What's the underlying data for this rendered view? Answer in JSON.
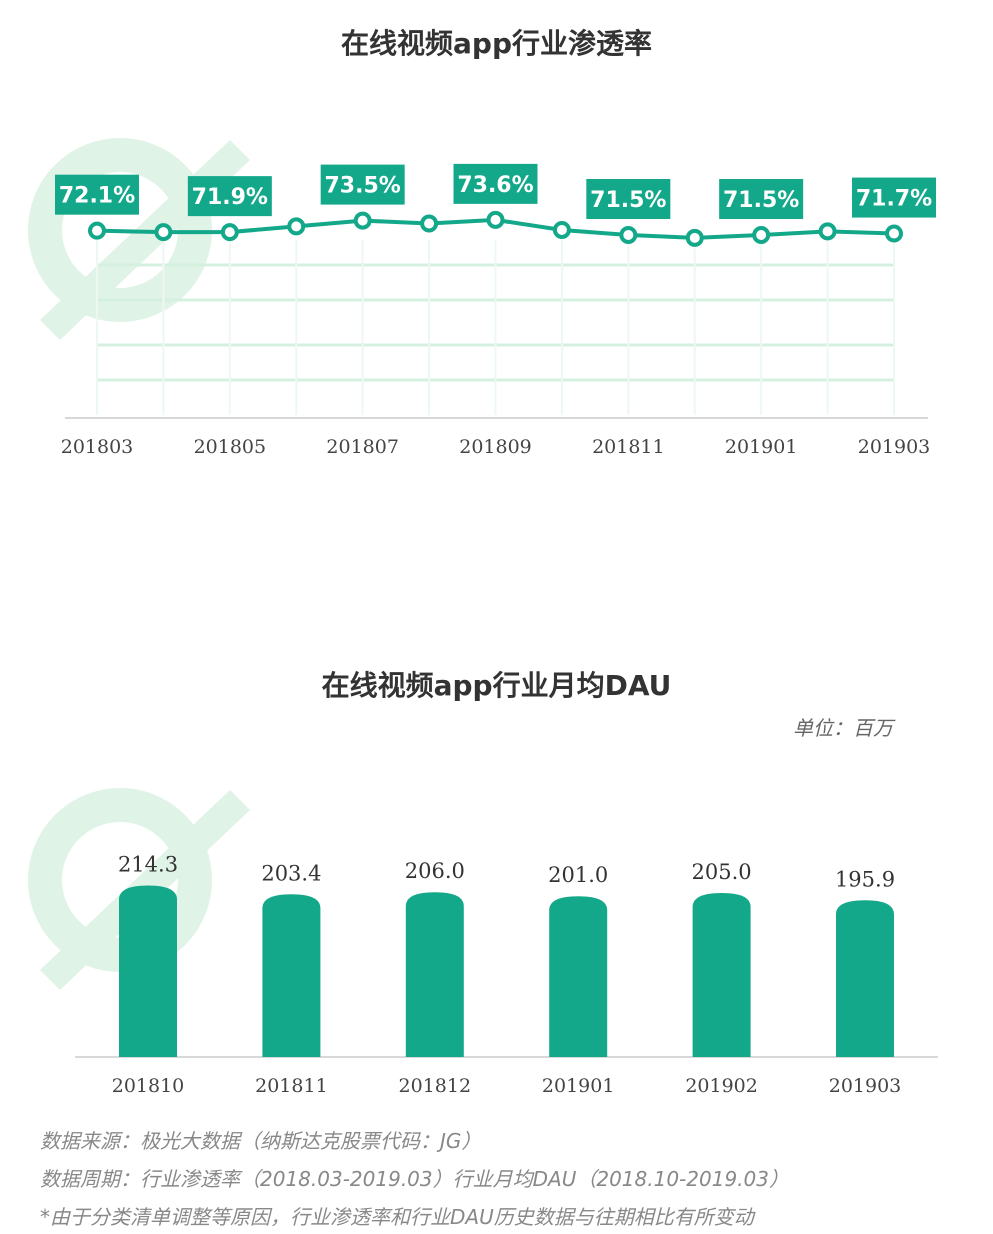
{
  "colors": {
    "accent": "#14a88a",
    "grid": "#d6f0e0",
    "watermark": "#dff3e6"
  },
  "watermark": {
    "brand": "极光大数据",
    "sub": "纳斯达克股票代码：JG"
  },
  "chart_data": [
    {
      "type": "line",
      "title": "在线视频app行业渗透率",
      "x": [
        "201803",
        "201804",
        "201805",
        "201806",
        "201807",
        "201808",
        "201809",
        "201810",
        "201811",
        "201812",
        "201901",
        "201902",
        "201903"
      ],
      "xtick_labels": [
        "201803",
        "201805",
        "201807",
        "201809",
        "201811",
        "201901",
        "201903"
      ],
      "values": [
        72.1,
        71.9,
        71.9,
        72.7,
        73.5,
        73.1,
        73.6,
        72.2,
        71.5,
        71.1,
        71.5,
        72.0,
        71.7
      ],
      "data_labels": [
        {
          "x": "201803",
          "text": "72.1%"
        },
        {
          "x": "201805",
          "text": "71.9%"
        },
        {
          "x": "201807",
          "text": "73.5%"
        },
        {
          "x": "201809",
          "text": "73.6%"
        },
        {
          "x": "201811",
          "text": "71.5%"
        },
        {
          "x": "201901",
          "text": "71.5%"
        },
        {
          "x": "201903",
          "text": "71.7%"
        }
      ],
      "unit": "%"
    },
    {
      "type": "bar",
      "title": "在线视频app行业月均DAU",
      "unit_label": "单位：百万",
      "categories": [
        "201810",
        "201811",
        "201812",
        "201901",
        "201902",
        "201903"
      ],
      "values": [
        214.3,
        203.4,
        206.0,
        201.0,
        205.0,
        195.9
      ],
      "data_labels": [
        "214.3",
        "203.4",
        "206.0",
        "201.0",
        "205.0",
        "195.9"
      ]
    }
  ],
  "notes": {
    "source": "数据来源：极光大数据（纳斯达克股票代码：JG）",
    "period": "数据周期：行业渗透率（2018.03-2019.03）行业月均DAU（2018.10-2019.03）",
    "disclaimer": "*由于分类清单调整等原因，行业渗透率和行业DAU历史数据与往期相比有所变动"
  }
}
